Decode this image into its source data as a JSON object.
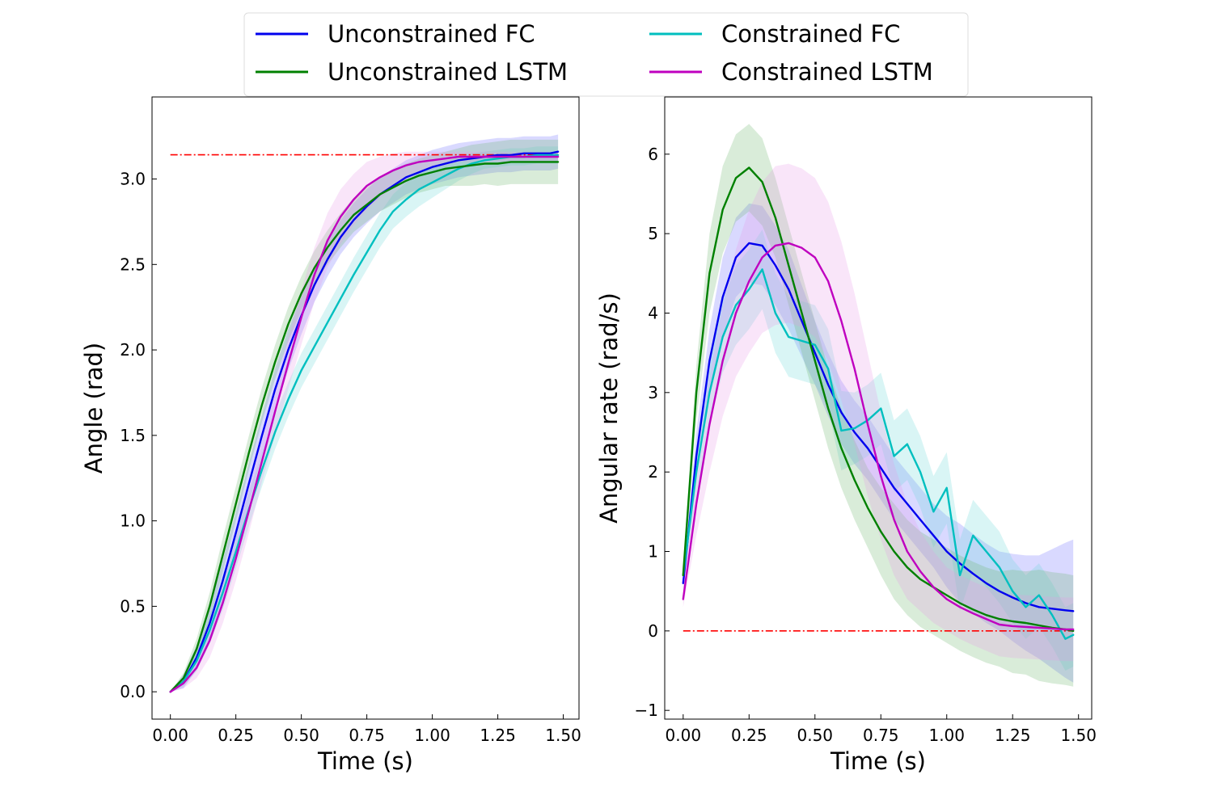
{
  "legend": {
    "entries": [
      {
        "label": "Unconstrained FC",
        "color": "#0000ee"
      },
      {
        "label": "Constrained FC",
        "color": "#00bfbf"
      },
      {
        "label": "Unconstrained LSTM",
        "color": "#008000"
      },
      {
        "label": "Constrained LSTM",
        "color": "#bf00bf"
      }
    ]
  },
  "chart_data": [
    {
      "type": "line",
      "name": "angle",
      "title": "",
      "xlabel": "Time (s)",
      "ylabel": "Angle (rad)",
      "xlim": [
        -0.07,
        1.56
      ],
      "ylim": [
        -0.16,
        3.48
      ],
      "xticks": [
        0.0,
        0.25,
        0.5,
        0.75,
        1.0,
        1.25,
        1.5
      ],
      "xtick_labels": [
        "0.00",
        "0.25",
        "0.50",
        "0.75",
        "1.00",
        "1.25",
        "1.50"
      ],
      "yticks": [
        0.0,
        0.5,
        1.0,
        1.5,
        2.0,
        2.5,
        3.0
      ],
      "ytick_labels": [
        "0.0",
        "0.5",
        "1.0",
        "1.5",
        "2.0",
        "2.5",
        "3.0"
      ],
      "reference": {
        "name": "target",
        "value": 3.1416,
        "x_range": [
          0,
          1.48
        ],
        "color": "#ff0000",
        "style": "dash-dot"
      },
      "x": [
        0.0,
        0.05,
        0.1,
        0.15,
        0.2,
        0.25,
        0.3,
        0.35,
        0.4,
        0.45,
        0.5,
        0.55,
        0.6,
        0.65,
        0.7,
        0.75,
        0.8,
        0.85,
        0.9,
        0.95,
        1.0,
        1.05,
        1.1,
        1.15,
        1.2,
        1.25,
        1.3,
        1.35,
        1.4,
        1.45,
        1.48
      ],
      "series": [
        {
          "name": "Unconstrained FC",
          "color": "#0000ee",
          "band_color": "#6666ff",
          "values": [
            0.0,
            0.06,
            0.2,
            0.4,
            0.65,
            0.93,
            1.22,
            1.5,
            1.77,
            2.0,
            2.2,
            2.38,
            2.53,
            2.66,
            2.76,
            2.84,
            2.91,
            2.96,
            3.01,
            3.04,
            3.07,
            3.09,
            3.11,
            3.12,
            3.13,
            3.14,
            3.14,
            3.15,
            3.15,
            3.15,
            3.16
          ],
          "band": [
            0.0,
            0.04,
            0.07,
            0.1,
            0.12,
            0.12,
            0.12,
            0.12,
            0.12,
            0.12,
            0.11,
            0.1,
            0.1,
            0.1,
            0.1,
            0.1,
            0.1,
            0.1,
            0.1,
            0.1,
            0.1,
            0.1,
            0.1,
            0.1,
            0.1,
            0.1,
            0.1,
            0.1,
            0.1,
            0.1,
            0.1
          ]
        },
        {
          "name": "Constrained FC",
          "color": "#00bfbf",
          "band_color": "#66d9d9",
          "values": [
            0.0,
            0.06,
            0.18,
            0.36,
            0.58,
            0.82,
            1.07,
            1.3,
            1.52,
            1.71,
            1.88,
            2.02,
            2.16,
            2.3,
            2.44,
            2.57,
            2.7,
            2.81,
            2.88,
            2.94,
            2.98,
            3.02,
            3.06,
            3.09,
            3.11,
            3.12,
            3.13,
            3.13,
            3.14,
            3.14,
            3.14
          ],
          "band": [
            0.0,
            0.03,
            0.06,
            0.08,
            0.1,
            0.1,
            0.1,
            0.1,
            0.1,
            0.1,
            0.1,
            0.1,
            0.1,
            0.1,
            0.1,
            0.1,
            0.1,
            0.1,
            0.1,
            0.1,
            0.09,
            0.08,
            0.07,
            0.06,
            0.05,
            0.05,
            0.05,
            0.05,
            0.05,
            0.05,
            0.05
          ]
        },
        {
          "name": "Unconstrained LSTM",
          "color": "#008000",
          "band_color": "#66b366",
          "values": [
            0.0,
            0.08,
            0.25,
            0.5,
            0.8,
            1.1,
            1.4,
            1.68,
            1.93,
            2.15,
            2.33,
            2.48,
            2.6,
            2.7,
            2.79,
            2.85,
            2.91,
            2.95,
            2.99,
            3.02,
            3.04,
            3.06,
            3.07,
            3.08,
            3.09,
            3.09,
            3.1,
            3.1,
            3.1,
            3.1,
            3.1
          ],
          "band": [
            0.0,
            0.03,
            0.06,
            0.08,
            0.1,
            0.1,
            0.1,
            0.1,
            0.1,
            0.1,
            0.1,
            0.1,
            0.1,
            0.1,
            0.1,
            0.1,
            0.1,
            0.1,
            0.1,
            0.1,
            0.1,
            0.1,
            0.11,
            0.12,
            0.12,
            0.13,
            0.13,
            0.13,
            0.13,
            0.13,
            0.13
          ]
        },
        {
          "name": "Constrained LSTM",
          "color": "#bf00bf",
          "band_color": "#e699e6",
          "values": [
            0.0,
            0.05,
            0.14,
            0.3,
            0.52,
            0.78,
            1.06,
            1.35,
            1.64,
            1.92,
            2.19,
            2.44,
            2.64,
            2.78,
            2.88,
            2.96,
            3.01,
            3.05,
            3.08,
            3.1,
            3.11,
            3.12,
            3.13,
            3.13,
            3.13,
            3.13,
            3.13,
            3.13,
            3.13,
            3.13,
            3.13
          ],
          "band": [
            0.0,
            0.03,
            0.06,
            0.1,
            0.12,
            0.13,
            0.13,
            0.12,
            0.14,
            0.15,
            0.16,
            0.16,
            0.16,
            0.16,
            0.15,
            0.14,
            0.12,
            0.1,
            0.08,
            0.06,
            0.05,
            0.04,
            0.03,
            0.03,
            0.03,
            0.03,
            0.03,
            0.03,
            0.03,
            0.03,
            0.03
          ]
        }
      ]
    },
    {
      "type": "line",
      "name": "angular-rate",
      "title": "",
      "xlabel": "Time (s)",
      "ylabel": "Angular rate (rad/s)",
      "xlim": [
        -0.07,
        1.55
      ],
      "ylim": [
        -1.11,
        6.72
      ],
      "xticks": [
        0.0,
        0.25,
        0.5,
        0.75,
        1.0,
        1.25,
        1.5
      ],
      "xtick_labels": [
        "0.00",
        "0.25",
        "0.50",
        "0.75",
        "1.00",
        "1.25",
        "1.50"
      ],
      "yticks": [
        -1,
        0,
        1,
        2,
        3,
        4,
        5,
        6
      ],
      "ytick_labels": [
        "−1",
        "0",
        "1",
        "2",
        "3",
        "4",
        "5",
        "6"
      ],
      "reference": {
        "name": "target",
        "value": 0,
        "x_range": [
          0,
          1.48
        ],
        "color": "#ff0000",
        "style": "dash-dot"
      },
      "x": [
        0.0,
        0.05,
        0.1,
        0.15,
        0.2,
        0.25,
        0.3,
        0.35,
        0.4,
        0.45,
        0.5,
        0.55,
        0.6,
        0.65,
        0.7,
        0.75,
        0.8,
        0.85,
        0.9,
        0.95,
        1.0,
        1.05,
        1.1,
        1.15,
        1.2,
        1.25,
        1.3,
        1.35,
        1.4,
        1.45,
        1.48
      ],
      "series": [
        {
          "name": "Unconstrained FC",
          "color": "#0000ee",
          "band_color": "#6666ff",
          "values": [
            0.6,
            2.2,
            3.4,
            4.2,
            4.7,
            4.88,
            4.85,
            4.6,
            4.3,
            3.9,
            3.5,
            3.1,
            2.75,
            2.5,
            2.3,
            2.05,
            1.8,
            1.6,
            1.4,
            1.2,
            1.0,
            0.85,
            0.72,
            0.6,
            0.5,
            0.42,
            0.35,
            0.3,
            0.28,
            0.26,
            0.25
          ],
          "band": [
            0.1,
            0.3,
            0.4,
            0.5,
            0.5,
            0.5,
            0.5,
            0.5,
            0.5,
            0.45,
            0.4,
            0.4,
            0.4,
            0.4,
            0.4,
            0.4,
            0.4,
            0.4,
            0.4,
            0.4,
            0.45,
            0.5,
            0.5,
            0.5,
            0.5,
            0.55,
            0.6,
            0.65,
            0.75,
            0.85,
            0.9
          ]
        },
        {
          "name": "Constrained FC",
          "color": "#00bfbf",
          "band_color": "#66d9d9",
          "values": [
            0.7,
            2.0,
            3.0,
            3.7,
            4.1,
            4.3,
            4.55,
            4.0,
            3.7,
            3.65,
            3.6,
            3.3,
            2.52,
            2.55,
            2.65,
            2.8,
            2.2,
            2.35,
            2.0,
            1.5,
            1.8,
            0.7,
            1.2,
            1.0,
            0.8,
            0.5,
            0.3,
            0.45,
            0.2,
            -0.1,
            -0.05
          ],
          "band": [
            0.1,
            0.3,
            0.4,
            0.45,
            0.5,
            0.5,
            0.5,
            0.5,
            0.5,
            0.5,
            0.5,
            0.5,
            0.5,
            0.45,
            0.45,
            0.45,
            0.45,
            0.45,
            0.45,
            0.45,
            0.45,
            0.45,
            0.45,
            0.45,
            0.45,
            0.4,
            0.4,
            0.4,
            0.4,
            0.4,
            0.4
          ]
        },
        {
          "name": "Unconstrained LSTM",
          "color": "#008000",
          "band_color": "#66b366",
          "values": [
            0.7,
            3.0,
            4.5,
            5.3,
            5.7,
            5.83,
            5.65,
            5.2,
            4.6,
            4.0,
            3.4,
            2.8,
            2.3,
            1.9,
            1.55,
            1.25,
            1.0,
            0.8,
            0.65,
            0.55,
            0.45,
            0.35,
            0.27,
            0.2,
            0.15,
            0.12,
            0.1,
            0.07,
            0.04,
            0.02,
            0.0
          ],
          "band": [
            0.1,
            0.35,
            0.5,
            0.55,
            0.55,
            0.55,
            0.55,
            0.5,
            0.5,
            0.5,
            0.5,
            0.5,
            0.5,
            0.5,
            0.5,
            0.55,
            0.6,
            0.6,
            0.6,
            0.6,
            0.6,
            0.6,
            0.6,
            0.6,
            0.6,
            0.65,
            0.65,
            0.7,
            0.7,
            0.7,
            0.7
          ]
        },
        {
          "name": "Constrained LSTM",
          "color": "#bf00bf",
          "band_color": "#e699e6",
          "values": [
            0.4,
            1.6,
            2.6,
            3.4,
            4.0,
            4.4,
            4.7,
            4.85,
            4.88,
            4.82,
            4.7,
            4.4,
            3.9,
            3.3,
            2.6,
            1.95,
            1.4,
            1.0,
            0.75,
            0.55,
            0.4,
            0.3,
            0.22,
            0.15,
            0.08,
            0.06,
            0.05,
            0.04,
            0.03,
            0.02,
            0.02
          ],
          "band": [
            0.1,
            0.4,
            0.6,
            0.7,
            0.8,
            0.9,
            0.95,
            1.0,
            1.0,
            1.0,
            1.0,
            1.0,
            1.0,
            0.95,
            0.9,
            0.8,
            0.7,
            0.6,
            0.5,
            0.45,
            0.4,
            0.4,
            0.4,
            0.4,
            0.4,
            0.4,
            0.4,
            0.4,
            0.4,
            0.4,
            0.4
          ]
        }
      ]
    }
  ]
}
